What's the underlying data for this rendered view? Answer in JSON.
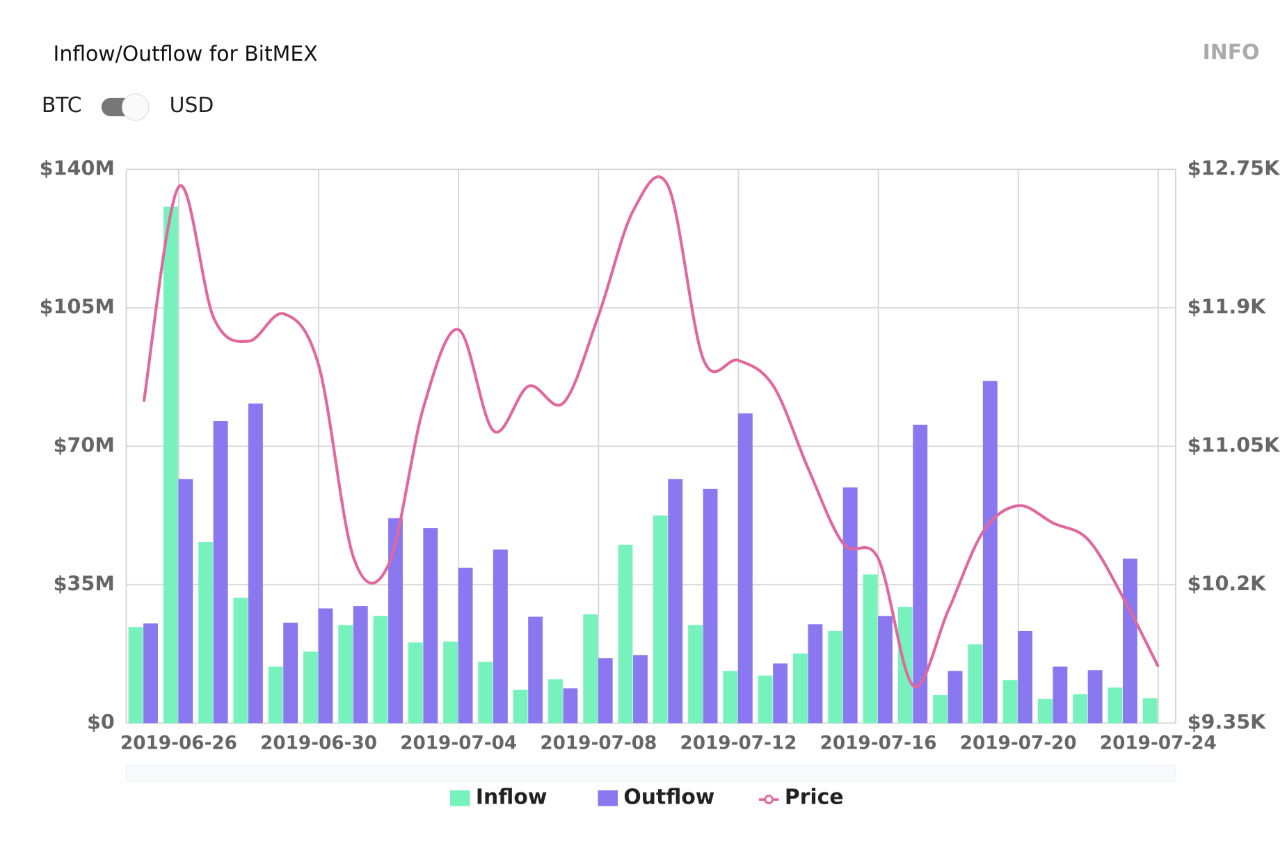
{
  "header": {
    "info": "INFO"
  },
  "toggle": {
    "left": "BTC",
    "right": "USD"
  },
  "chart_data": {
    "type": "bar-line",
    "title": "Inflow/Outflow for BitMEX",
    "categories": [
      null,
      "2019-06-26",
      null,
      null,
      null,
      "2019-06-30",
      null,
      null,
      null,
      "2019-07-04",
      null,
      null,
      null,
      "2019-07-08",
      null,
      null,
      null,
      "2019-07-12",
      null,
      null,
      null,
      "2019-07-16",
      null,
      null,
      null,
      "2019-07-20",
      null,
      null,
      null,
      "2019-07-24"
    ],
    "series": [
      {
        "name": "Inflow",
        "type": "bar",
        "color": "#77f2bd",
        "values": [
          24300000,
          130600000,
          45800000,
          31700000,
          14300000,
          18100000,
          24800000,
          27100000,
          20400000,
          20600000,
          15500000,
          8400000,
          11100000,
          27500000,
          45100000,
          52500000,
          24800000,
          13200000,
          12000000,
          17600000,
          23300000,
          37600000,
          29400000,
          7100000,
          19900000,
          10900000,
          6100000,
          7300000,
          9000000,
          6300000
        ]
      },
      {
        "name": "Outflow",
        "type": "bar",
        "color": "#8a78f0",
        "values": [
          25200000,
          61700000,
          76400000,
          80800000,
          25400000,
          29000000,
          29600000,
          51800000,
          49300000,
          39300000,
          43900000,
          26900000,
          8800000,
          16400000,
          17200000,
          61700000,
          59200000,
          78300000,
          15100000,
          25000000,
          59600000,
          27100000,
          75400000,
          13200000,
          86500000,
          23300000,
          14300000,
          13400000,
          41600000,
          null
        ]
      },
      {
        "name": "Price",
        "type": "line",
        "axis": "y2",
        "color": "#e0689e",
        "values": [
          11323,
          12643,
          11837,
          11695,
          11863,
          11547,
          10364,
          10324,
          11292,
          11766,
          11144,
          11419,
          11317,
          11853,
          12500,
          12643,
          11582,
          11577,
          11419,
          10910,
          10451,
          10359,
          9579,
          10043,
          10527,
          10685,
          10578,
          10476,
          10120,
          9697
        ]
      }
    ],
    "ylim": [
      0,
      140000000
    ],
    "yticks": [
      {
        "value": 0,
        "label": "$0"
      },
      {
        "value": 35000000,
        "label": "$35M"
      },
      {
        "value": 70000000,
        "label": "$70M"
      },
      {
        "value": 105000000,
        "label": "$105M"
      },
      {
        "value": 140000000,
        "label": "$140M"
      }
    ],
    "y2lim": [
      9350,
      12750
    ],
    "y2ticks": [
      {
        "value": 9350,
        "label": "$9.35K"
      },
      {
        "value": 10200,
        "label": "$10.2K"
      },
      {
        "value": 11050,
        "label": "$11.05K"
      },
      {
        "value": 11900,
        "label": "$11.9K"
      },
      {
        "value": 12750,
        "label": "$12.75K"
      }
    ],
    "grid": true
  }
}
